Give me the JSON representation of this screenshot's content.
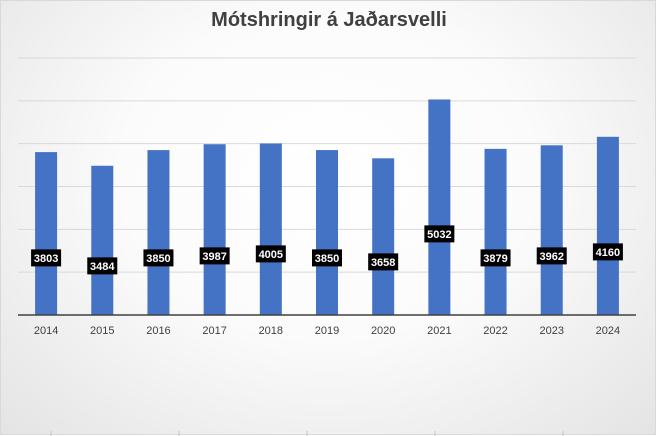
{
  "chart_data": {
    "type": "bar",
    "title": "Mótshringir á Jaðarsvelli",
    "categories": [
      "2014",
      "2015",
      "2016",
      "2017",
      "2018",
      "2019",
      "2020",
      "2021",
      "2022",
      "2023",
      "2024"
    ],
    "series": [
      {
        "values": [
          3803,
          3484,
          3850,
          3987,
          4005,
          3850,
          3658,
          5032,
          3879,
          3962,
          4160
        ]
      }
    ],
    "xlabel": "",
    "ylabel": "",
    "ylim": [
      0,
      6000
    ],
    "y_axis_labels_visible": false,
    "grid": true,
    "legend": "none",
    "bar_color": "#4472C4",
    "label_box_color": "#000000",
    "label_text_color": "#ffffff"
  }
}
